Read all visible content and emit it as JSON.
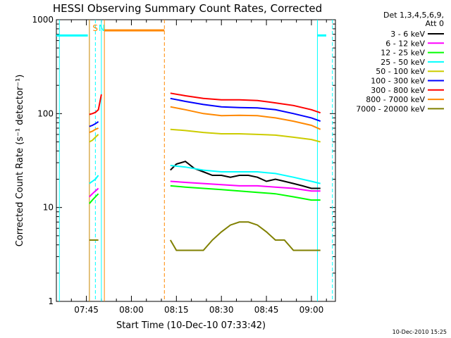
{
  "chart_data": {
    "type": "line",
    "title": "HESSI Observing Summary Count Rates, Corrected",
    "xlabel": "Start Time (10-Dec-10 07:33:42)",
    "ylabel": "Corrected Count Rate (s⁻¹ detector⁻¹)",
    "y_scale": "log",
    "ylim": [
      1,
      1000
    ],
    "xlim": [
      "07:35",
      "09:08"
    ],
    "x_ticks": [
      "07:45",
      "08:00",
      "08:15",
      "08:30",
      "08:45",
      "09:00"
    ],
    "y_ticks": [
      "1",
      "10",
      "100",
      "1000"
    ],
    "grid": false,
    "legend_header": [
      "Det 1,3,4,5,6,9,",
      "Att 0"
    ],
    "legend_position": "right",
    "series": [
      {
        "name": "3 - 6 keV",
        "color": "#000000",
        "segments": [
          {
            "x": [
              "08:13",
              "08:15",
              "08:18",
              "08:21",
              "08:24",
              "08:27",
              "08:30",
              "08:33",
              "08:36",
              "08:39",
              "08:42",
              "08:45",
              "08:48",
              "08:51",
              "08:54",
              "08:57",
              "09:00",
              "09:03"
            ],
            "y": [
              25,
              29,
              31,
              26,
              24,
              22,
              22,
              21,
              22,
              22,
              21,
              19,
              20,
              19,
              18,
              17,
              16,
              16
            ]
          }
        ]
      },
      {
        "name": "6 - 12 keV",
        "color": "#ff00ff",
        "segments": [
          {
            "x": [
              "07:46",
              "07:47",
              "07:48",
              "07:49"
            ],
            "y": [
              13,
              14,
              15,
              16
            ]
          },
          {
            "x": [
              "08:13",
              "08:18",
              "08:24",
              "08:30",
              "08:36",
              "08:42",
              "08:48",
              "08:54",
              "09:00",
              "09:03"
            ],
            "y": [
              19,
              18.5,
              18,
              17.5,
              17,
              17,
              16.5,
              16,
              15,
              15
            ]
          }
        ]
      },
      {
        "name": "12 - 25 keV",
        "color": "#00ff00",
        "segments": [
          {
            "x": [
              "07:46",
              "07:47",
              "07:48",
              "07:49"
            ],
            "y": [
              11,
              12,
              13,
              14
            ]
          },
          {
            "x": [
              "08:13",
              "08:18",
              "08:24",
              "08:30",
              "08:36",
              "08:42",
              "08:48",
              "08:54",
              "09:00",
              "09:03"
            ],
            "y": [
              17,
              16.5,
              16,
              15.5,
              15,
              14.5,
              14,
              13,
              12,
              12
            ]
          }
        ]
      },
      {
        "name": "25 - 50 keV",
        "color": "#00ffff",
        "segments": [
          {
            "x": [
              "07:46",
              "07:47",
              "07:48",
              "07:49"
            ],
            "y": [
              18,
              19,
              20,
              22
            ]
          },
          {
            "x": [
              "08:13",
              "08:18",
              "08:24",
              "08:30",
              "08:36",
              "08:42",
              "08:48",
              "08:54",
              "09:00",
              "09:03"
            ],
            "y": [
              28,
              27,
              25,
              24,
              24,
              24,
              23,
              21,
              19,
              18
            ]
          }
        ]
      },
      {
        "name": "50 - 100 keV",
        "color": "#cccc00",
        "segments": [
          {
            "x": [
              "07:46",
              "07:47",
              "07:48",
              "07:49"
            ],
            "y": [
              50,
              52,
              56,
              60
            ]
          },
          {
            "x": [
              "08:13",
              "08:18",
              "08:24",
              "08:30",
              "08:36",
              "08:42",
              "08:48",
              "08:54",
              "09:00",
              "09:03"
            ],
            "y": [
              68,
              66,
              63,
              61,
              61,
              60,
              59,
              56,
              53,
              50
            ]
          }
        ]
      },
      {
        "name": "100 - 300 keV",
        "color": "#0000ff",
        "segments": [
          {
            "x": [
              "07:46",
              "07:47",
              "07:48",
              "07:49"
            ],
            "y": [
              73,
              75,
              78,
              82
            ]
          },
          {
            "x": [
              "08:13",
              "08:18",
              "08:24",
              "08:30",
              "08:36",
              "08:42",
              "08:48",
              "08:54",
              "09:00",
              "09:03"
            ],
            "y": [
              145,
              135,
              125,
              118,
              116,
              115,
              110,
              100,
              90,
              83
            ]
          }
        ]
      },
      {
        "name": "300 - 800 keV",
        "color": "#ff0000",
        "segments": [
          {
            "x": [
              "07:46",
              "07:47",
              "07:48",
              "07:49",
              "07:50"
            ],
            "y": [
              98,
              100,
              103,
              110,
              160
            ]
          },
          {
            "x": [
              "08:13",
              "08:18",
              "08:24",
              "08:30",
              "08:36",
              "08:42",
              "08:48",
              "08:54",
              "09:00",
              "09:03"
            ],
            "y": [
              165,
              155,
              145,
              140,
              140,
              138,
              130,
              122,
              110,
              102
            ]
          }
        ]
      },
      {
        "name": "800 - 7000 keV",
        "color": "#ff8800",
        "segments": [
          {
            "x": [
              "07:46",
              "07:47",
              "07:48",
              "07:49"
            ],
            "y": [
              63,
              65,
              68,
              70
            ]
          },
          {
            "x": [
              "08:13",
              "08:18",
              "08:24",
              "08:30",
              "08:36",
              "08:42",
              "08:48",
              "08:54",
              "09:00",
              "09:03"
            ],
            "y": [
              118,
              110,
              100,
              95,
              96,
              95,
              90,
              83,
              75,
              68
            ]
          }
        ]
      },
      {
        "name": "7000 - 20000 keV",
        "color": "#808000",
        "segments": [
          {
            "x": [
              "07:46",
              "07:47",
              "07:48",
              "07:49"
            ],
            "y": [
              4.5,
              4.5,
              4.5,
              4.5
            ]
          },
          {
            "x": [
              "08:13",
              "08:15",
              "08:18",
              "08:21",
              "08:24",
              "08:27",
              "08:30",
              "08:33",
              "08:36",
              "08:39",
              "08:42",
              "08:45",
              "08:48",
              "08:51",
              "08:54",
              "08:57",
              "09:00",
              "09:03"
            ],
            "y": [
              4.5,
              3.5,
              3.5,
              3.5,
              3.5,
              4.5,
              5.5,
              6.5,
              7,
              7,
              6.5,
              5.5,
              4.5,
              4.5,
              3.5,
              3.5,
              3.5,
              3.5
            ]
          }
        ]
      }
    ],
    "annotations": [
      {
        "label": "S",
        "x": "07:48",
        "color": "#ff8800"
      },
      {
        "label": "N",
        "x": "07:50",
        "color": "#00ffff"
      }
    ],
    "timestamp": "10-Dec-2010 15:25"
  }
}
